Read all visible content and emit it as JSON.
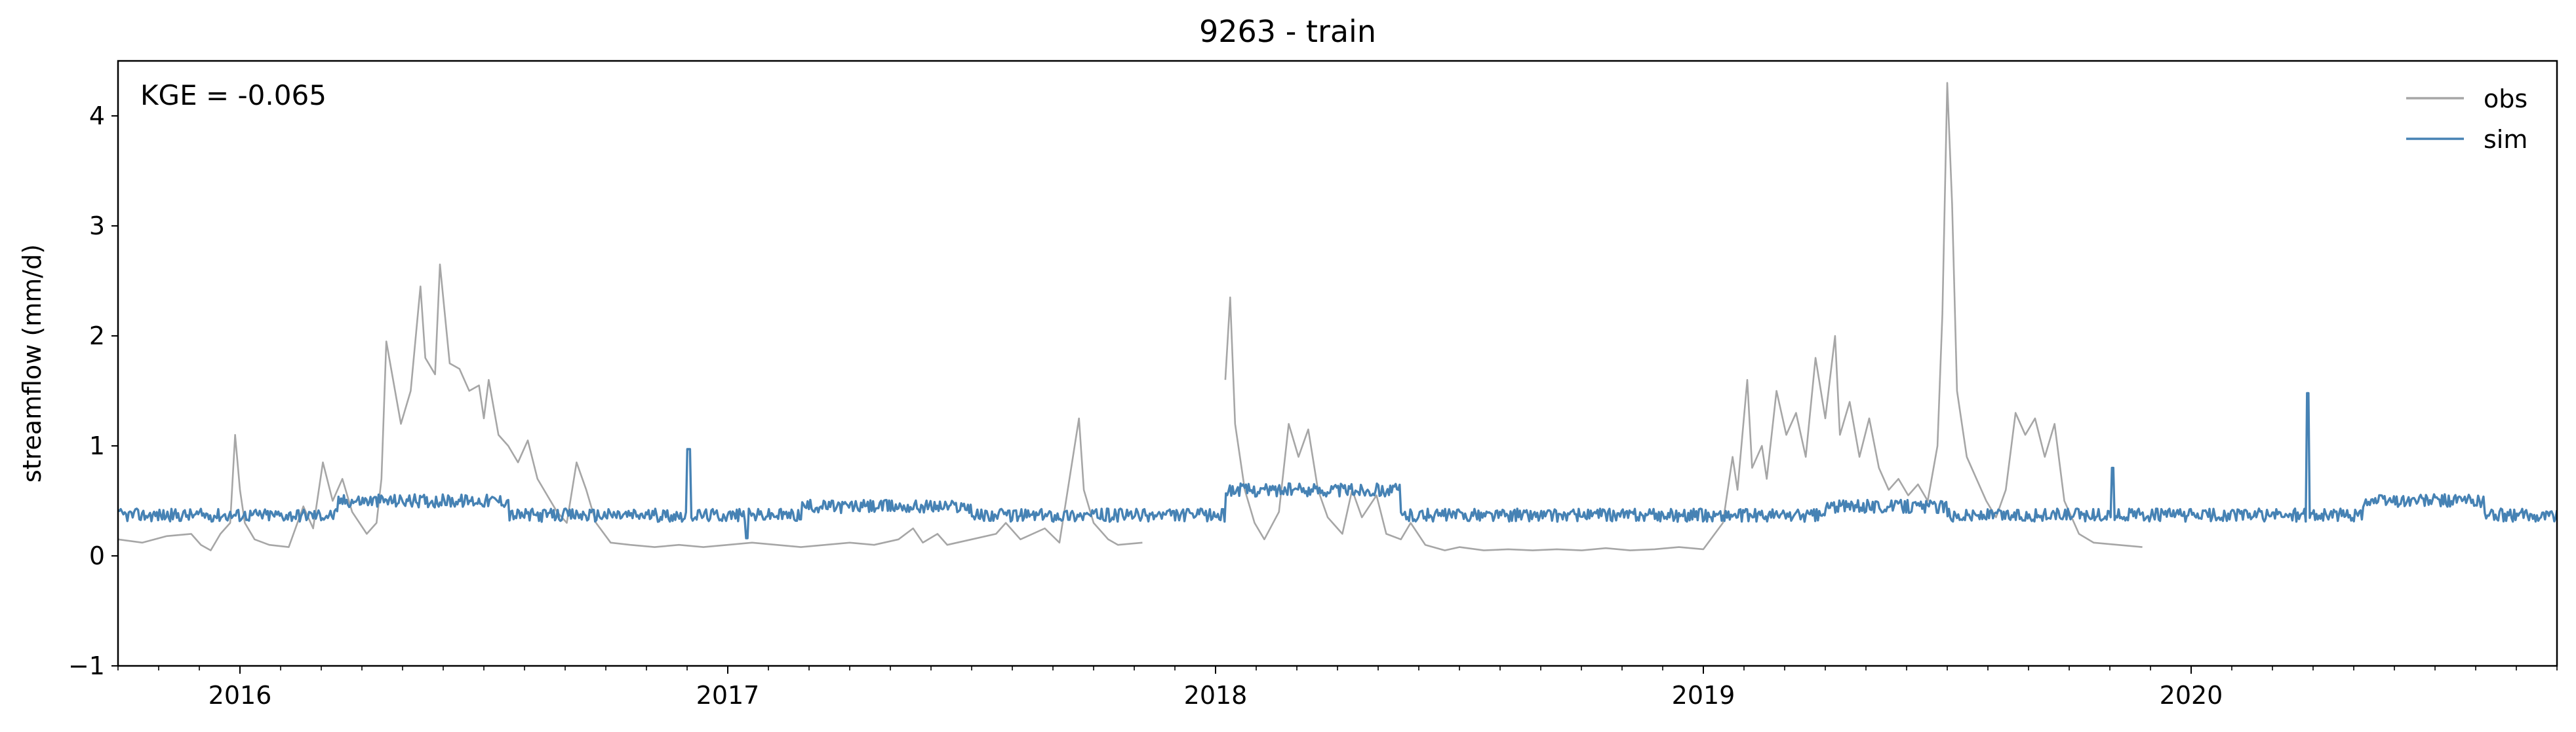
{
  "chart_data": {
    "type": "line",
    "title": "9263 - train",
    "xlabel": "",
    "ylabel": "streamflow (mm/d)",
    "annotation": "KGE = -0.065",
    "xlim": [
      2015.75,
      2020.75
    ],
    "ylim": [
      -1,
      4.5
    ],
    "yticks": [
      -1,
      0,
      1,
      2,
      3,
      4
    ],
    "xticks": [
      {
        "value": 2016,
        "label": "2016"
      },
      {
        "value": 2017,
        "label": "2017"
      },
      {
        "value": 2018,
        "label": "2018"
      },
      {
        "value": 2019,
        "label": "2019"
      },
      {
        "value": 2020,
        "label": "2020"
      }
    ],
    "legend_position": "top-right",
    "series": [
      {
        "name": "obs",
        "color": "#a6a6a6",
        "segments": [
          [
            [
              2015.75,
              0.15
            ],
            [
              2015.8,
              0.12
            ],
            [
              2015.85,
              0.18
            ],
            [
              2015.9,
              0.2
            ],
            [
              2015.92,
              0.1
            ],
            [
              2015.94,
              0.05
            ],
            [
              2015.96,
              0.2
            ],
            [
              2015.98,
              0.3
            ],
            [
              2015.99,
              1.1
            ],
            [
              2016.0,
              0.6
            ],
            [
              2016.01,
              0.3
            ],
            [
              2016.03,
              0.15
            ],
            [
              2016.06,
              0.1
            ],
            [
              2016.1,
              0.08
            ],
            [
              2016.13,
              0.45
            ],
            [
              2016.15,
              0.25
            ],
            [
              2016.17,
              0.85
            ],
            [
              2016.19,
              0.5
            ],
            [
              2016.21,
              0.7
            ],
            [
              2016.23,
              0.4
            ],
            [
              2016.26,
              0.2
            ],
            [
              2016.28,
              0.3
            ],
            [
              2016.29,
              0.7
            ],
            [
              2016.3,
              1.95
            ],
            [
              2016.31,
              1.7
            ],
            [
              2016.33,
              1.2
            ],
            [
              2016.35,
              1.5
            ],
            [
              2016.37,
              2.45
            ],
            [
              2016.38,
              1.8
            ],
            [
              2016.4,
              1.65
            ],
            [
              2016.41,
              2.65
            ],
            [
              2016.43,
              1.75
            ],
            [
              2016.45,
              1.7
            ],
            [
              2016.47,
              1.5
            ],
            [
              2016.49,
              1.55
            ],
            [
              2016.5,
              1.25
            ],
            [
              2016.51,
              1.6
            ],
            [
              2016.53,
              1.1
            ],
            [
              2016.55,
              1.0
            ],
            [
              2016.57,
              0.85
            ],
            [
              2016.59,
              1.05
            ],
            [
              2016.61,
              0.7
            ],
            [
              2016.63,
              0.55
            ],
            [
              2016.65,
              0.4
            ],
            [
              2016.67,
              0.3
            ],
            [
              2016.69,
              0.85
            ],
            [
              2016.71,
              0.6
            ],
            [
              2016.73,
              0.3
            ],
            [
              2016.76,
              0.12
            ],
            [
              2016.8,
              0.1
            ],
            [
              2016.85,
              0.08
            ],
            [
              2016.9,
              0.1
            ],
            [
              2016.95,
              0.08
            ],
            [
              2017.0,
              0.1
            ],
            [
              2017.05,
              0.12
            ],
            [
              2017.1,
              0.1
            ],
            [
              2017.15,
              0.08
            ],
            [
              2017.2,
              0.1
            ],
            [
              2017.25,
              0.12
            ],
            [
              2017.3,
              0.1
            ],
            [
              2017.35,
              0.15
            ],
            [
              2017.38,
              0.25
            ],
            [
              2017.4,
              0.12
            ],
            [
              2017.43,
              0.2
            ],
            [
              2017.45,
              0.1
            ],
            [
              2017.5,
              0.15
            ],
            [
              2017.55,
              0.2
            ],
            [
              2017.57,
              0.3
            ],
            [
              2017.6,
              0.15
            ],
            [
              2017.65,
              0.25
            ],
            [
              2017.68,
              0.12
            ],
            [
              2017.72,
              1.25
            ],
            [
              2017.73,
              0.6
            ],
            [
              2017.75,
              0.3
            ],
            [
              2017.78,
              0.15
            ],
            [
              2017.8,
              0.1
            ],
            [
              2017.85,
              0.12
            ]
          ],
          [
            [
              2018.02,
              1.6
            ],
            [
              2018.03,
              2.35
            ],
            [
              2018.04,
              1.2
            ],
            [
              2018.06,
              0.6
            ],
            [
              2018.08,
              0.3
            ],
            [
              2018.1,
              0.15
            ],
            [
              2018.13,
              0.4
            ],
            [
              2018.15,
              1.2
            ],
            [
              2018.17,
              0.9
            ],
            [
              2018.19,
              1.15
            ],
            [
              2018.21,
              0.6
            ],
            [
              2018.23,
              0.35
            ],
            [
              2018.26,
              0.2
            ],
            [
              2018.28,
              0.6
            ],
            [
              2018.3,
              0.35
            ],
            [
              2018.33,
              0.55
            ],
            [
              2018.35,
              0.2
            ],
            [
              2018.38,
              0.15
            ],
            [
              2018.4,
              0.3
            ],
            [
              2018.43,
              0.1
            ],
            [
              2018.47,
              0.05
            ],
            [
              2018.5,
              0.08
            ],
            [
              2018.55,
              0.05
            ],
            [
              2018.6,
              0.06
            ],
            [
              2018.65,
              0.05
            ],
            [
              2018.7,
              0.06
            ],
            [
              2018.75,
              0.05
            ],
            [
              2018.8,
              0.07
            ],
            [
              2018.85,
              0.05
            ],
            [
              2018.9,
              0.06
            ],
            [
              2018.95,
              0.08
            ],
            [
              2019.0,
              0.06
            ],
            [
              2019.04,
              0.3
            ],
            [
              2019.06,
              0.9
            ],
            [
              2019.07,
              0.6
            ],
            [
              2019.09,
              1.6
            ],
            [
              2019.1,
              0.8
            ],
            [
              2019.12,
              1.0
            ],
            [
              2019.13,
              0.7
            ],
            [
              2019.15,
              1.5
            ],
            [
              2019.17,
              1.1
            ],
            [
              2019.19,
              1.3
            ],
            [
              2019.21,
              0.9
            ],
            [
              2019.23,
              1.8
            ],
            [
              2019.25,
              1.25
            ],
            [
              2019.27,
              2.0
            ],
            [
              2019.28,
              1.1
            ],
            [
              2019.3,
              1.4
            ],
            [
              2019.32,
              0.9
            ],
            [
              2019.34,
              1.25
            ],
            [
              2019.36,
              0.8
            ],
            [
              2019.38,
              0.6
            ],
            [
              2019.4,
              0.7
            ],
            [
              2019.42,
              0.55
            ],
            [
              2019.44,
              0.65
            ],
            [
              2019.46,
              0.5
            ],
            [
              2019.48,
              1.0
            ],
            [
              2019.49,
              2.2
            ],
            [
              2019.5,
              4.3
            ],
            [
              2019.51,
              3.2
            ],
            [
              2019.52,
              1.5
            ],
            [
              2019.54,
              0.9
            ],
            [
              2019.56,
              0.7
            ],
            [
              2019.58,
              0.5
            ],
            [
              2019.6,
              0.35
            ],
            [
              2019.62,
              0.6
            ],
            [
              2019.64,
              1.3
            ],
            [
              2019.66,
              1.1
            ],
            [
              2019.68,
              1.25
            ],
            [
              2019.7,
              0.9
            ],
            [
              2019.72,
              1.2
            ],
            [
              2019.74,
              0.5
            ],
            [
              2019.77,
              0.2
            ],
            [
              2019.8,
              0.12
            ],
            [
              2019.85,
              0.1
            ],
            [
              2019.9,
              0.08
            ]
          ]
        ]
      },
      {
        "name": "sim",
        "color": "#4682b4",
        "segments": []
      }
    ]
  }
}
